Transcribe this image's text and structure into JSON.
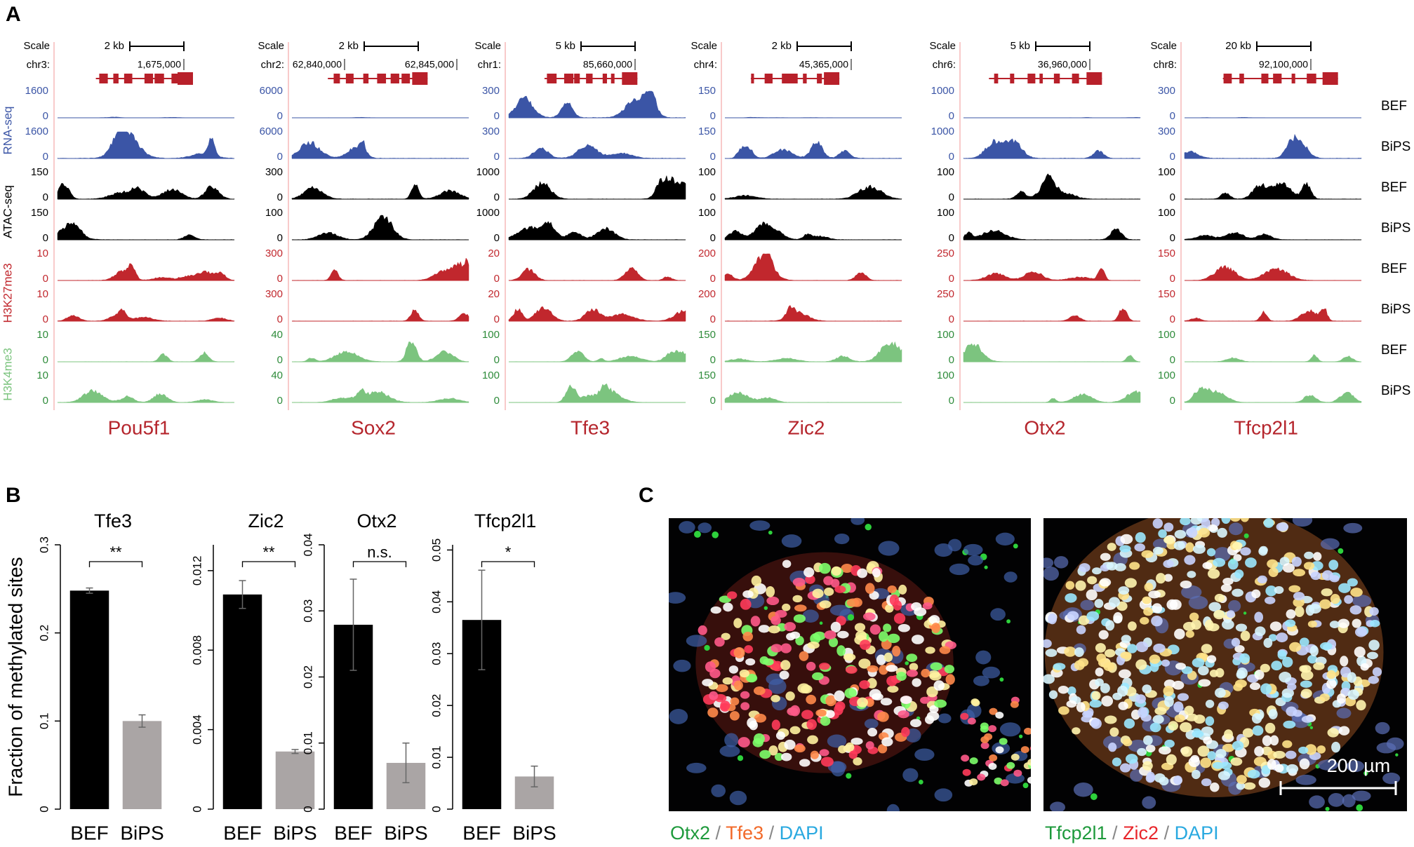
{
  "panel_labels": [
    "A",
    "B",
    "C"
  ],
  "genome_tracks": {
    "assay_labels": [
      "RNA-seq",
      "ATAC-seq",
      "H3K27me3",
      "H3K4me3"
    ],
    "row_labels": [
      "BEF",
      "BiPS",
      "BEF",
      "BiPS",
      "BEF",
      "BiPS",
      "BEF",
      "BiPS"
    ],
    "scale_label": "Scale",
    "loci": [
      {
        "gene": "Pou5f1",
        "chrom": "chr3:",
        "scalebar": "2 kb",
        "coords": [
          "1,675,000"
        ],
        "tracks": [
          [
            0,
            1600
          ],
          [
            0,
            1600
          ],
          [
            0,
            150
          ],
          [
            0,
            150
          ],
          [
            0,
            10
          ],
          [
            0,
            10
          ],
          [
            0,
            10
          ],
          [
            0,
            10
          ]
        ]
      },
      {
        "gene": "Sox2",
        "chrom": "chr2:",
        "scalebar": "2 kb",
        "coords": [
          "62,840,000",
          "62,845,000"
        ],
        "tracks": [
          [
            0,
            6000
          ],
          [
            0,
            6000
          ],
          [
            0,
            300
          ],
          [
            0,
            100
          ],
          [
            0,
            300
          ],
          [
            0,
            300
          ],
          [
            0,
            40
          ],
          [
            0,
            40
          ]
        ]
      },
      {
        "gene": "Tfe3",
        "chrom": "chr1:",
        "scalebar": "5 kb",
        "coords": [
          "85,660,000"
        ],
        "tracks": [
          [
            0,
            300
          ],
          [
            0,
            300
          ],
          [
            0,
            1000
          ],
          [
            0,
            1000
          ],
          [
            0,
            20
          ],
          [
            0,
            20
          ],
          [
            0,
            100
          ],
          [
            0,
            100
          ]
        ]
      },
      {
        "gene": "Zic2",
        "chrom": "chr4:",
        "scalebar": "2 kb",
        "coords": [
          "45,365,000"
        ],
        "tracks": [
          [
            0,
            150
          ],
          [
            0,
            150
          ],
          [
            0,
            100
          ],
          [
            0,
            100
          ],
          [
            0,
            200
          ],
          [
            0,
            200
          ],
          [
            0,
            150
          ],
          [
            0,
            150
          ]
        ]
      },
      {
        "gene": "Otx2",
        "chrom": "chr6:",
        "scalebar": "5 kb",
        "coords": [
          "36,960,000"
        ],
        "tracks": [
          [
            0,
            1000
          ],
          [
            0,
            1000
          ],
          [
            0,
            100
          ],
          [
            0,
            100
          ],
          [
            0,
            250
          ],
          [
            0,
            250
          ],
          [
            0,
            100
          ],
          [
            0,
            100
          ]
        ]
      },
      {
        "gene": "Tfcp2l1",
        "chrom": "chr8:",
        "scalebar": "20 kb",
        "coords": [
          "92,100,000"
        ],
        "tracks": [
          [
            0,
            300
          ],
          [
            0,
            300
          ],
          [
            0,
            100
          ],
          [
            0,
            100
          ],
          [
            0,
            150
          ],
          [
            0,
            150
          ],
          [
            0,
            100
          ],
          [
            0,
            100
          ]
        ]
      }
    ]
  },
  "chart_data": [
    {
      "type": "bar",
      "title": "Tfe3",
      "ylabel": "Fraction of methylated sites",
      "categories": [
        "BEF",
        "BiPS"
      ],
      "values": [
        0.248,
        0.1
      ],
      "errors": [
        0.003,
        0.007
      ],
      "colors": [
        "#000000",
        "#aaa5a5"
      ],
      "ylim": [
        0,
        0.3
      ],
      "yticks": [
        0,
        0.1,
        0.2,
        0.3
      ],
      "annotation": "**"
    },
    {
      "type": "bar",
      "title": "Zic2",
      "categories": [
        "BEF",
        "BiPS"
      ],
      "values": [
        0.0108,
        0.0029
      ],
      "errors": [
        0.0007,
        0.0001
      ],
      "colors": [
        "#000000",
        "#aaa5a5"
      ],
      "ylim": [
        0,
        0.0133
      ],
      "yticks": [
        0,
        0.004,
        0.008,
        0.012
      ],
      "annotation": "**"
    },
    {
      "type": "bar",
      "title": "Otx2",
      "categories": [
        "BEF",
        "BiPS"
      ],
      "values": [
        0.0279,
        0.007
      ],
      "errors": [
        0.0069,
        0.003
      ],
      "colors": [
        "#000000",
        "#aaa5a5"
      ],
      "ylim": [
        0,
        0.04
      ],
      "yticks": [
        0,
        0.01,
        0.02,
        0.03,
        0.04
      ],
      "annotation": "n.s."
    },
    {
      "type": "bar",
      "title": "Tfcp2l1",
      "categories": [
        "BEF",
        "BiPS"
      ],
      "values": [
        0.0365,
        0.0063
      ],
      "errors": [
        0.0096,
        0.002
      ],
      "colors": [
        "#000000",
        "#aaa5a5"
      ],
      "ylim": [
        0,
        0.051
      ],
      "yticks": [
        0,
        0.01,
        0.02,
        0.03,
        0.04,
        0.05
      ],
      "annotation": "*"
    }
  ],
  "images": {
    "separator": "/",
    "scale_bar": "200 µm",
    "captions": [
      [
        {
          "text": "Otx2",
          "color": "#1e9a3c"
        },
        {
          "text": "Tfe3",
          "color": "#f26a2a"
        },
        {
          "text": "DAPI",
          "color": "#29a9e0"
        }
      ],
      [
        {
          "text": "Tfcp2l1",
          "color": "#1e9a3c"
        },
        {
          "text": "Zic2",
          "color": "#e8262b"
        },
        {
          "text": "DAPI",
          "color": "#29a9e0"
        }
      ]
    ]
  }
}
